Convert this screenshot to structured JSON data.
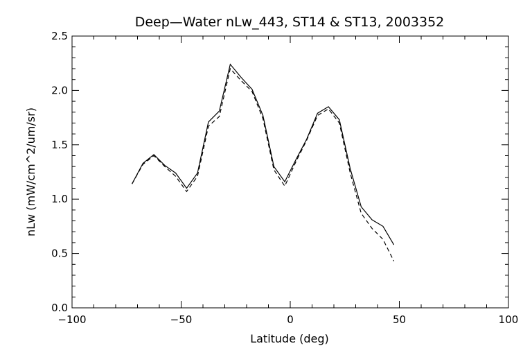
{
  "chart_data": {
    "type": "line",
    "title": "Deep—Water nLw_443, ST14 & ST13, 2003352",
    "xlabel": "Latitude (deg)",
    "ylabel": "nLw (mW/cm^2/um/sr)",
    "xlim": [
      -100,
      100
    ],
    "ylim": [
      0.0,
      2.5
    ],
    "xticks": [
      -100,
      -50,
      0,
      50,
      100
    ],
    "xtick_labels": [
      "−100",
      "−50",
      "0",
      "50",
      "100"
    ],
    "yticks": [
      0.0,
      0.5,
      1.0,
      1.5,
      2.0,
      2.5
    ],
    "ytick_labels": [
      "0.0",
      "0.5",
      "1.0",
      "1.5",
      "2.0",
      "2.5"
    ],
    "grid": false,
    "series": [
      {
        "style": "solid",
        "x": [
          -72.5,
          -67.5,
          -62.5,
          -57.5,
          -52.5,
          -47.5,
          -42.5,
          -37.5,
          -32.5,
          -27.5,
          -22.5,
          -17.5,
          -12.5,
          -7.5,
          -2.5,
          2.5,
          7.5,
          12.5,
          17.5,
          22.5,
          27.5,
          32.5,
          37.5,
          42.5,
          47.5
        ],
        "values": [
          1.14,
          1.33,
          1.41,
          1.31,
          1.24,
          1.1,
          1.24,
          1.71,
          1.81,
          2.24,
          2.12,
          2.01,
          1.77,
          1.3,
          1.16,
          1.36,
          1.55,
          1.79,
          1.85,
          1.73,
          1.28,
          0.93,
          0.81,
          0.75,
          0.58
        ]
      },
      {
        "style": "dashed",
        "x": [
          -72.5,
          -67.5,
          -62.5,
          -57.5,
          -52.5,
          -47.5,
          -42.5,
          -37.5,
          -32.5,
          -27.5,
          -22.5,
          -17.5,
          -12.5,
          -7.5,
          -2.5,
          2.5,
          7.5,
          12.5,
          17.5,
          22.5,
          27.5,
          32.5,
          37.5,
          42.5,
          47.5
        ],
        "values": [
          1.14,
          1.32,
          1.4,
          1.3,
          1.21,
          1.07,
          1.21,
          1.67,
          1.76,
          2.2,
          2.09,
          1.99,
          1.74,
          1.27,
          1.12,
          1.34,
          1.54,
          1.77,
          1.83,
          1.7,
          1.24,
          0.87,
          0.73,
          0.63,
          0.43
        ]
      }
    ]
  }
}
